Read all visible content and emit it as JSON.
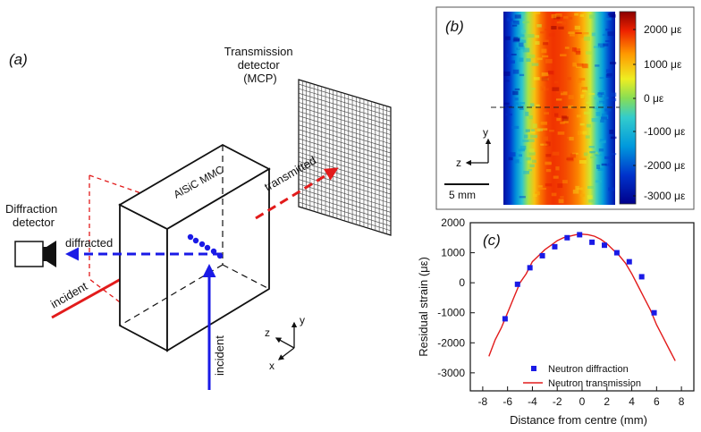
{
  "panel_a": {
    "label": "(a)",
    "transmission_detector": [
      "Transmission",
      "detector",
      "(MCP)"
    ],
    "diffraction_detector": [
      "Diffraction",
      "detector"
    ],
    "sample_label": "AlSiC MMC",
    "beam_transmitted": "transmitted",
    "beam_diffracted": "diffracted",
    "beam_incident_red": "incident",
    "beam_incident_blue": "incident",
    "axes": {
      "x": "x",
      "y": "y",
      "z": "z"
    },
    "colors": {
      "neutron_red": "#e21b1b",
      "neutron_blue": "#1a1ae6"
    }
  },
  "panel_b": {
    "label": "(b)",
    "axis_y": "y",
    "axis_z": "z",
    "scale_bar": "5 mm",
    "colorbar_labels": [
      "2000 με",
      "1000 με",
      "0 με",
      "-1000 με",
      "-2000 με",
      "-3000 με"
    ],
    "colorbar_range": [
      -3500,
      2500
    ],
    "map_profile_ue": [
      -3200,
      -2600,
      -1800,
      -900,
      0,
      800,
      1400,
      1700,
      1800,
      1750,
      1650,
      1500,
      1300,
      900,
      200,
      -700,
      -1600,
      -2400,
      -3100
    ]
  },
  "panel_c": {
    "label": "(c)",
    "chart_data": {
      "type": "scatter",
      "xlabel": "Distance from centre (mm)",
      "ylabel": "Residual strain (με)",
      "xlim": [
        -9,
        9
      ],
      "ylim": [
        -3600,
        2000
      ],
      "xticks": [
        -8,
        -6,
        -4,
        -2,
        0,
        2,
        4,
        6,
        8
      ],
      "yticks": [
        2000,
        1000,
        0,
        -1000,
        -2000,
        -3000
      ],
      "legend_position": "bottom-center",
      "series": [
        {
          "name": "Neutron diffraction",
          "kind": "markers",
          "color": "#1a1ae6",
          "x": [
            -6.2,
            -5.2,
            -4.2,
            -3.2,
            -2.2,
            -1.2,
            -0.2,
            0.8,
            1.8,
            2.8,
            3.8,
            4.8,
            5.8
          ],
          "y": [
            -1200,
            -50,
            500,
            900,
            1200,
            1500,
            1600,
            1350,
            1250,
            1000,
            700,
            200,
            -1000
          ]
        },
        {
          "name": "Neutron transmission",
          "kind": "line",
          "color": "#e21b1b",
          "x": [
            -7.5,
            -7,
            -6.5,
            -6,
            -5.5,
            -5,
            -4.5,
            -4,
            -3.5,
            -3,
            -2.5,
            -2,
            -1.5,
            -1,
            -0.5,
            0,
            0.5,
            1,
            1.5,
            2,
            2.5,
            3,
            3.5,
            4,
            4.5,
            5,
            5.5,
            6,
            6.5,
            7,
            7.5
          ],
          "y": [
            -2450,
            -1900,
            -1500,
            -1000,
            -500,
            0,
            300,
            700,
            900,
            1100,
            1250,
            1400,
            1500,
            1550,
            1600,
            1620,
            1600,
            1550,
            1450,
            1300,
            1100,
            900,
            650,
            300,
            -100,
            -500,
            -900,
            -1400,
            -1800,
            -2200,
            -2600
          ]
        }
      ]
    }
  }
}
